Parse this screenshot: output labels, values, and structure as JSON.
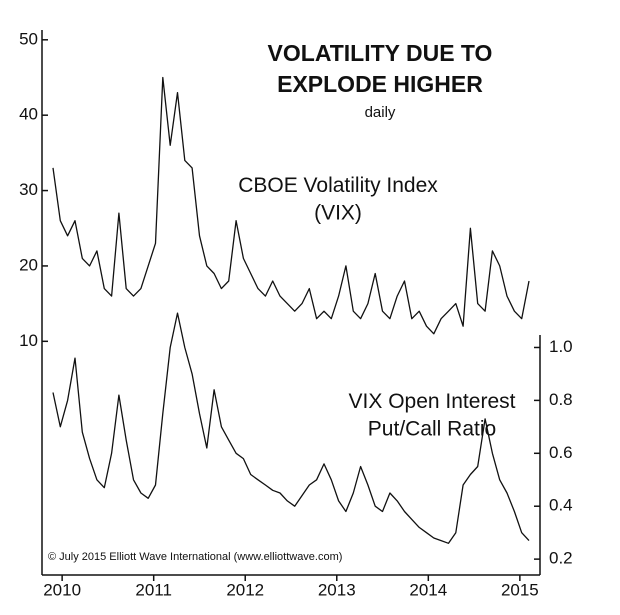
{
  "chart_data": {
    "type": "line",
    "title": [
      "VOLATILITY DUE TO",
      "EXPLODE HIGHER"
    ],
    "subtitle": "daily",
    "annotation": "© July 2015 Elliott Wave International (www.elliottwave.com)",
    "x": [
      2009.9,
      2009.98,
      2010.06,
      2010.14,
      2010.22,
      2010.3,
      2010.38,
      2010.46,
      2010.54,
      2010.62,
      2010.7,
      2010.78,
      2010.86,
      2010.94,
      2011.02,
      2011.1,
      2011.18,
      2011.26,
      2011.34,
      2011.42,
      2011.5,
      2011.58,
      2011.66,
      2011.74,
      2011.82,
      2011.9,
      2011.98,
      2012.06,
      2012.14,
      2012.22,
      2012.3,
      2012.38,
      2012.46,
      2012.54,
      2012.62,
      2012.7,
      2012.78,
      2012.86,
      2012.94,
      2013.02,
      2013.1,
      2013.18,
      2013.26,
      2013.34,
      2013.42,
      2013.5,
      2013.58,
      2013.66,
      2013.74,
      2013.82,
      2013.9,
      2013.98,
      2014.06,
      2014.14,
      2014.22,
      2014.3,
      2014.38,
      2014.46,
      2014.54,
      2014.62,
      2014.7,
      2014.78,
      2014.86,
      2014.94,
      2015.02,
      2015.1
    ],
    "series": [
      {
        "name": "CBOE Volatility Index\n(VIX)",
        "color": "#111111",
        "values": [
          33,
          26,
          24,
          26,
          21,
          20,
          22,
          17,
          16,
          27,
          17,
          16,
          17,
          20,
          23,
          45,
          36,
          43,
          34,
          33,
          24,
          20,
          19,
          17,
          18,
          26,
          21,
          19,
          17,
          16,
          18,
          16,
          15,
          14,
          15,
          17,
          13,
          14,
          13,
          16,
          20,
          14,
          13,
          15,
          19,
          14,
          13,
          16,
          18,
          13,
          14,
          12,
          11,
          13,
          14,
          15,
          12,
          25,
          15,
          14,
          22,
          20,
          16,
          14,
          13,
          18
        ]
      },
      {
        "name": "VIX Open Interest\nPut/Call Ratio",
        "color": "#111111",
        "axis": "y2",
        "values": [
          0.83,
          0.7,
          0.8,
          0.96,
          0.68,
          0.58,
          0.5,
          0.47,
          0.6,
          0.82,
          0.65,
          0.5,
          0.45,
          0.43,
          0.48,
          0.75,
          1.0,
          1.13,
          1.0,
          0.9,
          0.75,
          0.62,
          0.84,
          0.7,
          0.65,
          0.6,
          0.58,
          0.52,
          0.5,
          0.48,
          0.46,
          0.45,
          0.42,
          0.4,
          0.44,
          0.48,
          0.5,
          0.56,
          0.5,
          0.42,
          0.38,
          0.45,
          0.55,
          0.48,
          0.4,
          0.38,
          0.45,
          0.42,
          0.38,
          0.35,
          0.32,
          0.3,
          0.28,
          0.27,
          0.26,
          0.3,
          0.48,
          0.52,
          0.55,
          0.73,
          0.6,
          0.5,
          0.45,
          0.38,
          0.3,
          0.27
        ]
      }
    ],
    "xlim": [
      2009.78,
      2015.22
    ],
    "xticks": [
      2010,
      2011,
      2012,
      2013,
      2014,
      2015
    ],
    "ylim": [
      -21,
      51.3
    ],
    "yticks": [
      10,
      20,
      30,
      40,
      50
    ],
    "y2lim": [
      0.14,
      2.2
    ],
    "y2ticks": [
      0.2,
      0.4,
      0.6,
      {
        "value": 1,
        "label": "1.0"
      },
      0.8
    ],
    "grid": false
  }
}
